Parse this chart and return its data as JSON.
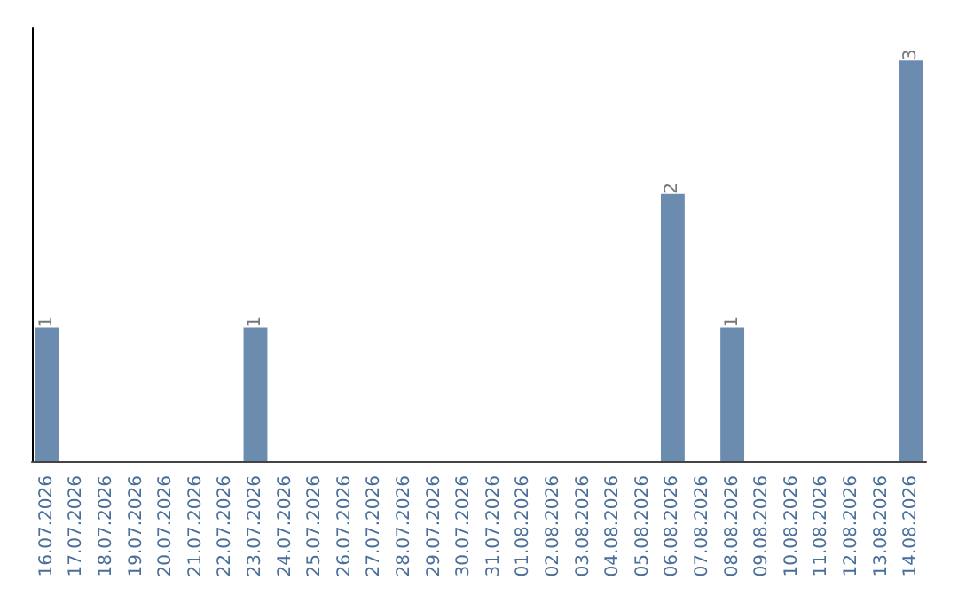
{
  "chart_data": {
    "type": "bar",
    "categories": [
      "16.07.2026",
      "17.07.2026",
      "18.07.2026",
      "19.07.2026",
      "20.07.2026",
      "21.07.2026",
      "22.07.2026",
      "23.07.2026",
      "24.07.2026",
      "25.07.2026",
      "26.07.2026",
      "27.07.2026",
      "28.07.2026",
      "29.07.2026",
      "30.07.2026",
      "31.07.2026",
      "01.08.2026",
      "02.08.2026",
      "03.08.2026",
      "04.08.2026",
      "05.08.2026",
      "06.08.2026",
      "07.08.2026",
      "08.08.2026",
      "09.08.2026",
      "10.08.2026",
      "11.08.2026",
      "12.08.2026",
      "13.08.2026",
      "14.08.2026"
    ],
    "values": [
      1,
      0,
      0,
      0,
      0,
      0,
      0,
      1,
      0,
      0,
      0,
      0,
      0,
      0,
      0,
      0,
      0,
      0,
      0,
      0,
      0,
      2,
      0,
      1,
      0,
      0,
      0,
      0,
      0,
      3
    ],
    "value_labels": [
      "1",
      null,
      null,
      null,
      null,
      null,
      null,
      "1",
      null,
      null,
      null,
      null,
      null,
      null,
      null,
      null,
      null,
      null,
      null,
      null,
      null,
      "2",
      null,
      "1",
      null,
      null,
      null,
      null,
      null,
      "3"
    ],
    "color": "#6b8cae",
    "grid": false,
    "tick_labels": "x"
  }
}
